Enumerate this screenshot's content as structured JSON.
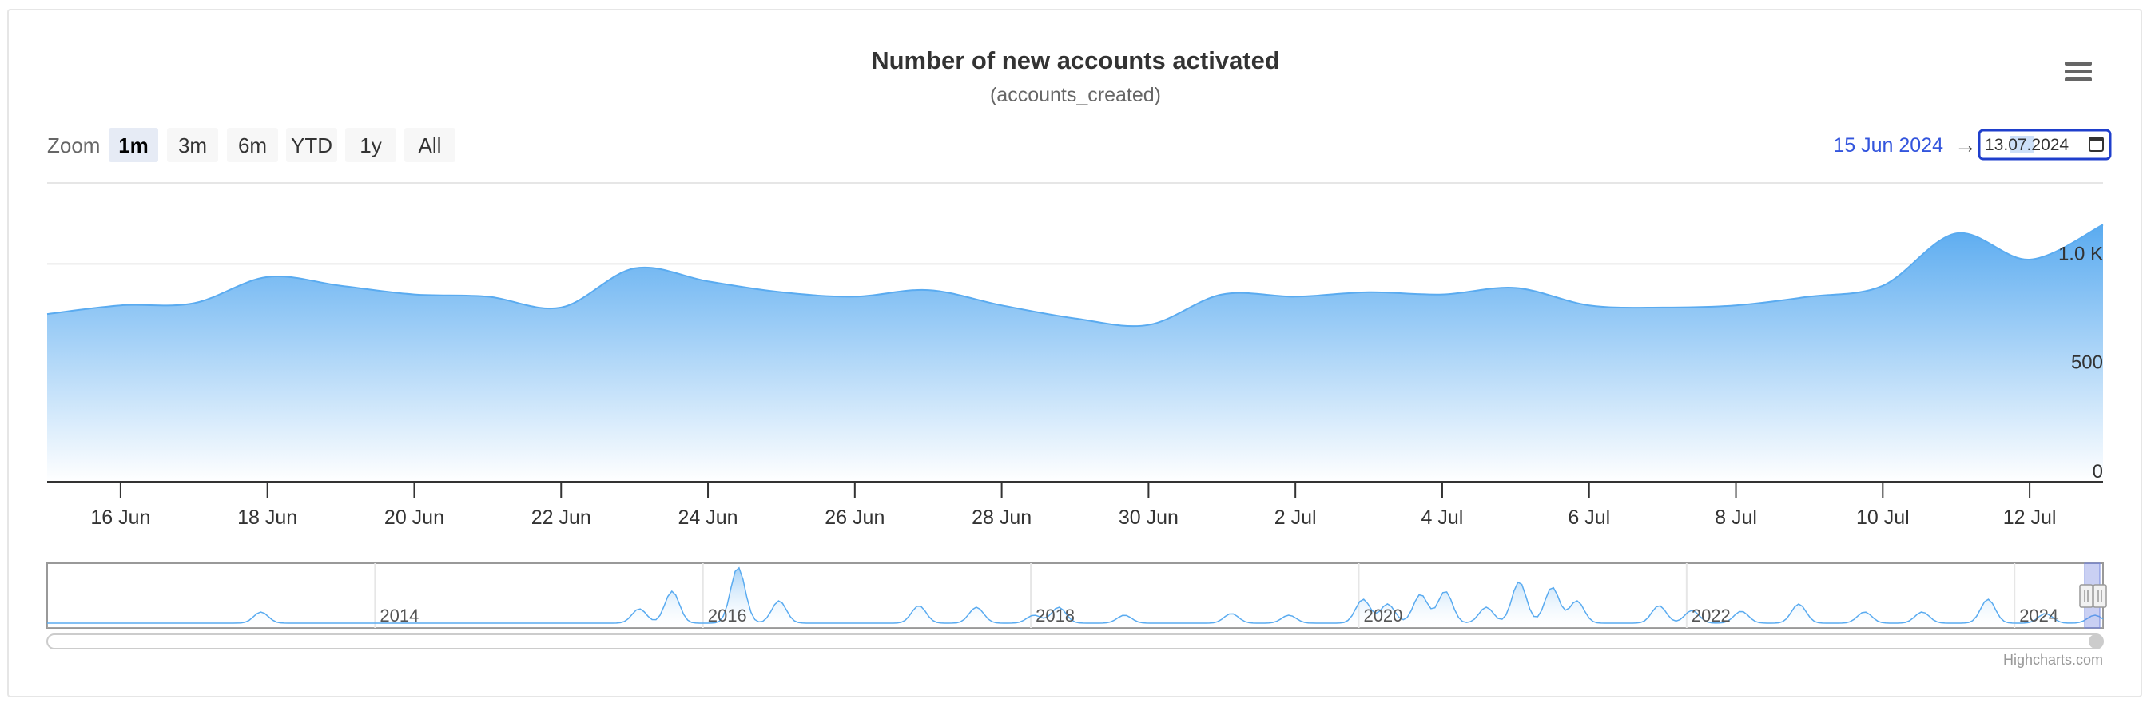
{
  "chart_data": {
    "type": "area",
    "title": "Number of new accounts activated",
    "subtitle": "(accounts_created)",
    "range_selector": {
      "zoom_label": "Zoom",
      "buttons": [
        "1m",
        "3m",
        "6m",
        "YTD",
        "1y",
        "All"
      ],
      "selected": "1m",
      "from_date": "15 Jun 2024",
      "arrow": "→",
      "to_date": "13.07.2024"
    },
    "x_tick_labels": [
      "16 Jun",
      "18 Jun",
      "20 Jun",
      "22 Jun",
      "24 Jun",
      "26 Jun",
      "28 Jun",
      "30 Jun",
      "2 Jul",
      "4 Jul",
      "6 Jul",
      "8 Jul",
      "10 Jul",
      "12 Jul"
    ],
    "y_tick_labels": [
      "0",
      "500",
      "1.0 K"
    ],
    "ylim": [
      0,
      1350
    ],
    "series": [
      {
        "x": [
          "2024-06-15",
          "2024-06-16",
          "2024-06-17",
          "2024-06-18",
          "2024-06-19",
          "2024-06-20",
          "2024-06-21",
          "2024-06-22",
          "2024-06-23",
          "2024-06-24",
          "2024-06-25",
          "2024-06-26",
          "2024-06-27",
          "2024-06-28",
          "2024-06-29",
          "2024-06-30",
          "2024-07-01",
          "2024-07-02",
          "2024-07-03",
          "2024-07-04",
          "2024-07-05",
          "2024-07-06",
          "2024-07-07",
          "2024-07-08",
          "2024-07-09",
          "2024-07-10",
          "2024-07-11",
          "2024-07-12",
          "2024-07-13"
        ],
        "values": [
          770,
          810,
          820,
          940,
          900,
          860,
          850,
          800,
          980,
          920,
          870,
          850,
          880,
          810,
          750,
          720,
          860,
          850,
          870,
          860,
          890,
          810,
          800,
          810,
          850,
          900,
          1140,
          1020,
          1180
        ]
      }
    ],
    "navigator": {
      "year_labels": [
        "2014",
        "2016",
        "2018",
        "2020",
        "2022",
        "2024"
      ]
    },
    "grid": true,
    "colors": {
      "line": "#5aabf0",
      "fill_top": "#5aabf0",
      "fill_bottom": "#ffffff",
      "accent": "#3355dd"
    }
  },
  "ui": {
    "credits": "Highcharts.com",
    "menu_icon": "hamburger-menu-icon"
  }
}
